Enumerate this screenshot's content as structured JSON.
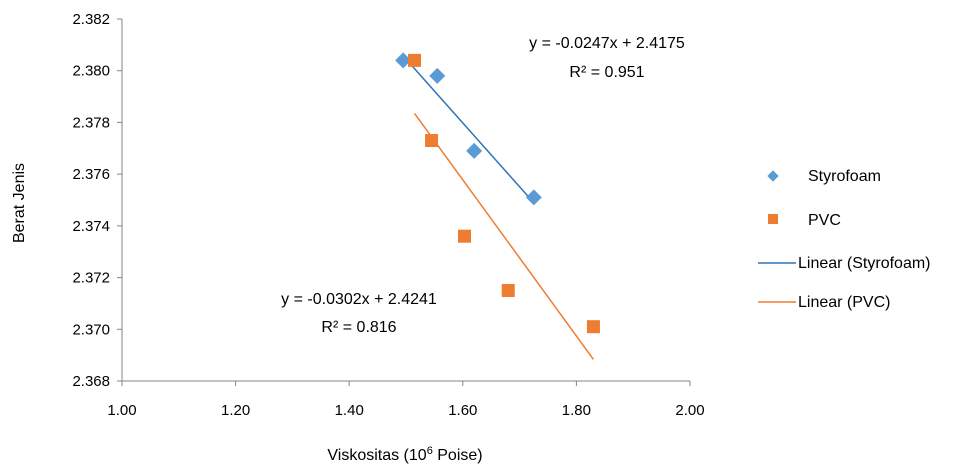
{
  "chart_data": {
    "type": "scatter",
    "title": "",
    "xlabel": "Viskositas (10",
    "xlabel_sup": "6",
    "xlabel_suffix": " Poise)",
    "ylabel": "Berat Jenis",
    "xlim": [
      1.0,
      2.0
    ],
    "ylim": [
      2.368,
      2.382
    ],
    "xticks": [
      1.0,
      1.2,
      1.4,
      1.6,
      1.8,
      2.0
    ],
    "xtick_labels": [
      "1.00",
      "1.20",
      "1.40",
      "1.60",
      "1.80",
      "2.00"
    ],
    "yticks": [
      2.368,
      2.37,
      2.372,
      2.374,
      2.376,
      2.378,
      2.38,
      2.382
    ],
    "ytick_labels": [
      "2.368",
      "2.370",
      "2.372",
      "2.374",
      "2.376",
      "2.378",
      "2.380",
      "2.382"
    ],
    "grid": false,
    "legend_position": "right",
    "series": [
      {
        "name": "Styrofoam",
        "marker": "diamond",
        "color": "#5B9BD5",
        "x": [
          1.495,
          1.555,
          1.62,
          1.725
        ],
        "y": [
          2.3804,
          2.3798,
          2.3769,
          2.3751
        ]
      },
      {
        "name": "PVC",
        "marker": "square",
        "color": "#ED7D31",
        "x": [
          1.515,
          1.545,
          1.603,
          1.68,
          1.83
        ],
        "y": [
          2.3804,
          2.3773,
          2.3736,
          2.3715,
          2.3701
        ]
      }
    ],
    "trendlines": [
      {
        "name": "Linear (Styrofoam)",
        "color": "#2E75B6",
        "slope": -0.0247,
        "intercept": 2.4175,
        "x_range": [
          1.495,
          1.725
        ],
        "equation": "y = -0.0247x + 2.4175",
        "r2": "R² = 0.951"
      },
      {
        "name": "Linear (PVC)",
        "color": "#ED7D31",
        "slope": -0.0302,
        "intercept": 2.4241,
        "x_range": [
          1.515,
          1.83
        ],
        "equation": "y = -0.0302x + 2.4241",
        "r2": "R² = 0.816"
      }
    ]
  }
}
